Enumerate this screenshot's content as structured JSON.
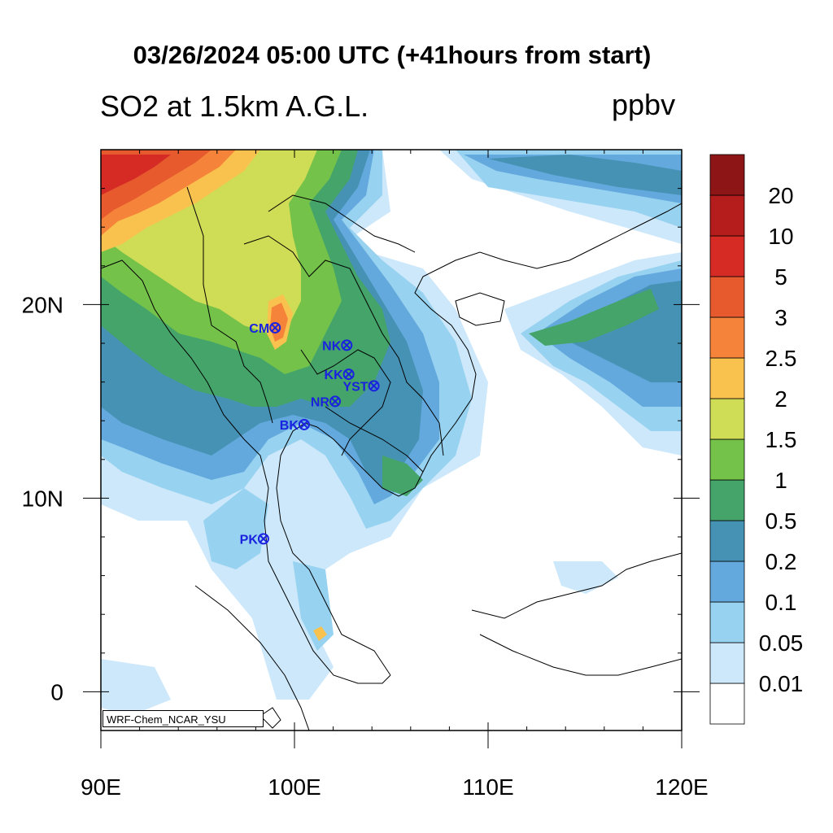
{
  "title": "03/26/2024 05:00 UTC (+41hours from start)",
  "subtitle": "SO2 at 1.5km A.G.L.",
  "units": "ppbv",
  "credit": "WRF-Chem_NCAR_YSU",
  "x_axis": {
    "ticks": [
      90,
      100,
      110,
      120
    ],
    "tick_labels": [
      "90E",
      "100E",
      "110E",
      "120E"
    ],
    "range": [
      90,
      120
    ]
  },
  "y_axis": {
    "ticks": [
      0,
      10,
      20
    ],
    "tick_labels": [
      "0",
      "10N",
      "20N"
    ],
    "range": [
      -2,
      28
    ]
  },
  "colorbar": {
    "levels": [
      "0.01",
      "0.05",
      "0.1",
      "0.2",
      "0.5",
      "1",
      "1.5",
      "2",
      "2.5",
      "3",
      "5",
      "10",
      "20"
    ],
    "colors": [
      "#ffffff",
      "#cde8fa",
      "#97d2f0",
      "#63a9dd",
      "#4692b4",
      "#44a46a",
      "#74c24a",
      "#cfdc55",
      "#f9c24f",
      "#f5843a",
      "#e65a2e",
      "#d62a25",
      "#b51c1c",
      "#8e1515"
    ]
  },
  "stations": [
    {
      "name": "CM",
      "lon": 99.0,
      "lat": 18.8
    },
    {
      "name": "NK",
      "lon": 102.7,
      "lat": 17.9
    },
    {
      "name": "KK",
      "lon": 102.8,
      "lat": 16.4
    },
    {
      "name": "YST",
      "lon": 104.1,
      "lat": 15.8
    },
    {
      "name": "NR",
      "lon": 102.1,
      "lat": 15.0
    },
    {
      "name": "BK",
      "lon": 100.5,
      "lat": 13.8
    },
    {
      "name": "PK",
      "lon": 98.4,
      "lat": 7.9
    }
  ]
}
